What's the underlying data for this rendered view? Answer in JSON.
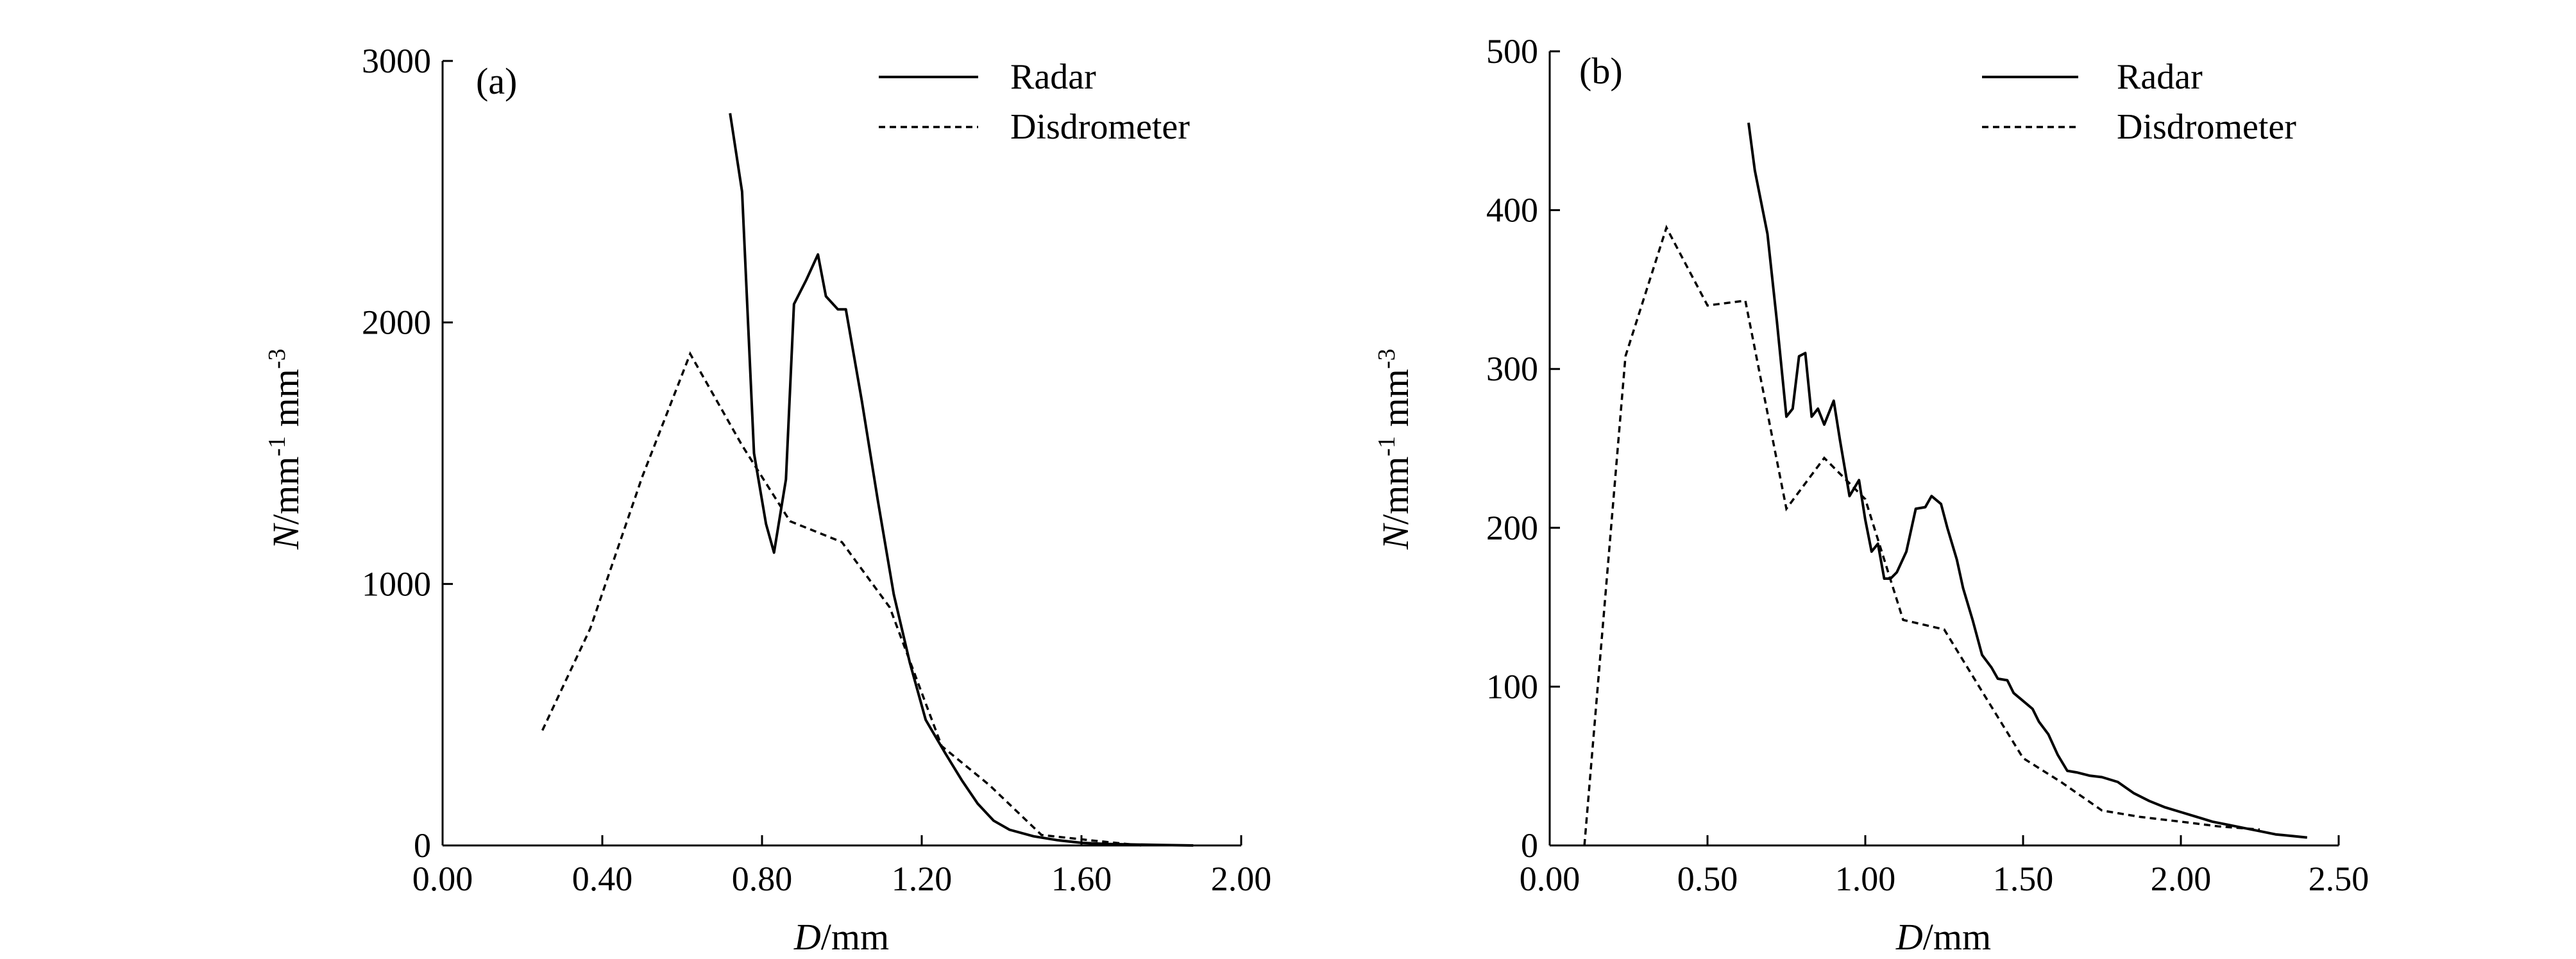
{
  "chart_data": [
    {
      "panel": "(a)",
      "type": "line",
      "xlabel_italic": "D",
      "xlabel_rest": "/mm",
      "ylabel_italic": "N",
      "ylabel_rest": "/mm",
      "ylabel_sup1": "-1",
      "ylabel_mid": " mm",
      "ylabel_sup2": "-3",
      "xlim": [
        0,
        2.0
      ],
      "ylim": [
        0,
        3000
      ],
      "x_ticks": [
        0,
        0.4,
        0.8,
        1.2,
        1.6,
        2.0
      ],
      "x_tick_labels": [
        "0.00",
        "0.40",
        "0.80",
        "1.20",
        "1.60",
        "2.00"
      ],
      "y_ticks": [
        0,
        1000,
        2000,
        3000
      ],
      "y_tick_labels": [
        "0",
        "1000",
        "2000",
        "3000"
      ],
      "legend": [
        "Radar",
        "Disdrometer"
      ],
      "series": [
        {
          "name": "Radar",
          "style": "solid",
          "x": [
            0.72,
            0.75,
            0.78,
            0.81,
            0.83,
            0.86,
            0.88,
            0.91,
            0.94,
            0.96,
            0.99,
            1.01,
            1.05,
            1.09,
            1.13,
            1.17,
            1.21,
            1.26,
            1.3,
            1.34,
            1.38,
            1.42,
            1.48,
            1.54,
            1.6,
            1.66,
            1.72,
            1.8,
            1.88
          ],
          "y": [
            2800,
            2500,
            1500,
            1230,
            1120,
            1400,
            2070,
            2160,
            2260,
            2100,
            2050,
            2050,
            1700,
            1320,
            960,
            700,
            480,
            350,
            250,
            160,
            95,
            60,
            35,
            20,
            10,
            6,
            4,
            2,
            0
          ]
        },
        {
          "name": "Disdrometer",
          "style": "dashed",
          "x": [
            0.25,
            0.37,
            0.5,
            0.62,
            0.75,
            0.87,
            1.0,
            1.12,
            1.25,
            1.37,
            1.5,
            1.62,
            1.75
          ],
          "y": [
            440,
            830,
            1410,
            1880,
            1530,
            1240,
            1160,
            910,
            380,
            230,
            40,
            20,
            0
          ]
        }
      ]
    },
    {
      "panel": "(b)",
      "type": "line",
      "xlabel_italic": "D",
      "xlabel_rest": "/mm",
      "ylabel_italic": "N",
      "ylabel_rest": "/mm",
      "ylabel_sup1": "-1",
      "ylabel_mid": " mm",
      "ylabel_sup2": "-3",
      "xlim": [
        0,
        2.5
      ],
      "ylim": [
        0,
        500
      ],
      "x_ticks": [
        0,
        0.5,
        1.0,
        1.5,
        2.0,
        2.5
      ],
      "x_tick_labels": [
        "0.00",
        "0.50",
        "1.00",
        "1.50",
        "2.00",
        "2.50"
      ],
      "y_ticks": [
        0,
        100,
        200,
        300,
        400,
        500
      ],
      "y_tick_labels": [
        "0",
        "100",
        "200",
        "300",
        "400",
        "500"
      ],
      "legend": [
        "Radar",
        "Disdrometer"
      ],
      "series": [
        {
          "name": "Radar",
          "style": "solid",
          "x": [
            0.63,
            0.65,
            0.69,
            0.72,
            0.75,
            0.77,
            0.79,
            0.81,
            0.83,
            0.85,
            0.87,
            0.9,
            0.92,
            0.95,
            0.98,
            1.0,
            1.02,
            1.04,
            1.06,
            1.08,
            1.1,
            1.13,
            1.16,
            1.19,
            1.21,
            1.24,
            1.26,
            1.29,
            1.31,
            1.34,
            1.37,
            1.4,
            1.42,
            1.45,
            1.47,
            1.5,
            1.53,
            1.55,
            1.58,
            1.61,
            1.64,
            1.67,
            1.71,
            1.75,
            1.8,
            1.85,
            1.9,
            1.95,
            2.0,
            2.05,
            2.1,
            2.15,
            2.2,
            2.25,
            2.3,
            2.35,
            2.4
          ],
          "y": [
            455,
            425,
            385,
            330,
            270,
            275,
            308,
            310,
            270,
            275,
            265,
            280,
            255,
            220,
            230,
            205,
            185,
            190,
            168,
            168,
            172,
            185,
            212,
            213,
            220,
            215,
            200,
            180,
            162,
            142,
            120,
            112,
            105,
            104,
            96,
            91,
            86,
            78,
            70,
            57,
            47,
            46,
            44,
            43,
            40,
            33,
            28,
            24,
            21,
            18,
            15,
            13,
            11,
            9,
            7,
            6,
            5
          ]
        },
        {
          "name": "Disdrometer",
          "style": "dashed",
          "x": [
            0.11,
            0.24,
            0.37,
            0.5,
            0.62,
            0.75,
            0.87,
            1.0,
            1.12,
            1.25,
            1.37,
            1.5,
            1.62,
            1.75,
            1.87,
            2.0,
            2.12,
            2.25
          ],
          "y": [
            0,
            308,
            389,
            340,
            343,
            212,
            244,
            218,
            142,
            136,
            97,
            55,
            40,
            22,
            18,
            15,
            12,
            10
          ]
        }
      ]
    }
  ]
}
